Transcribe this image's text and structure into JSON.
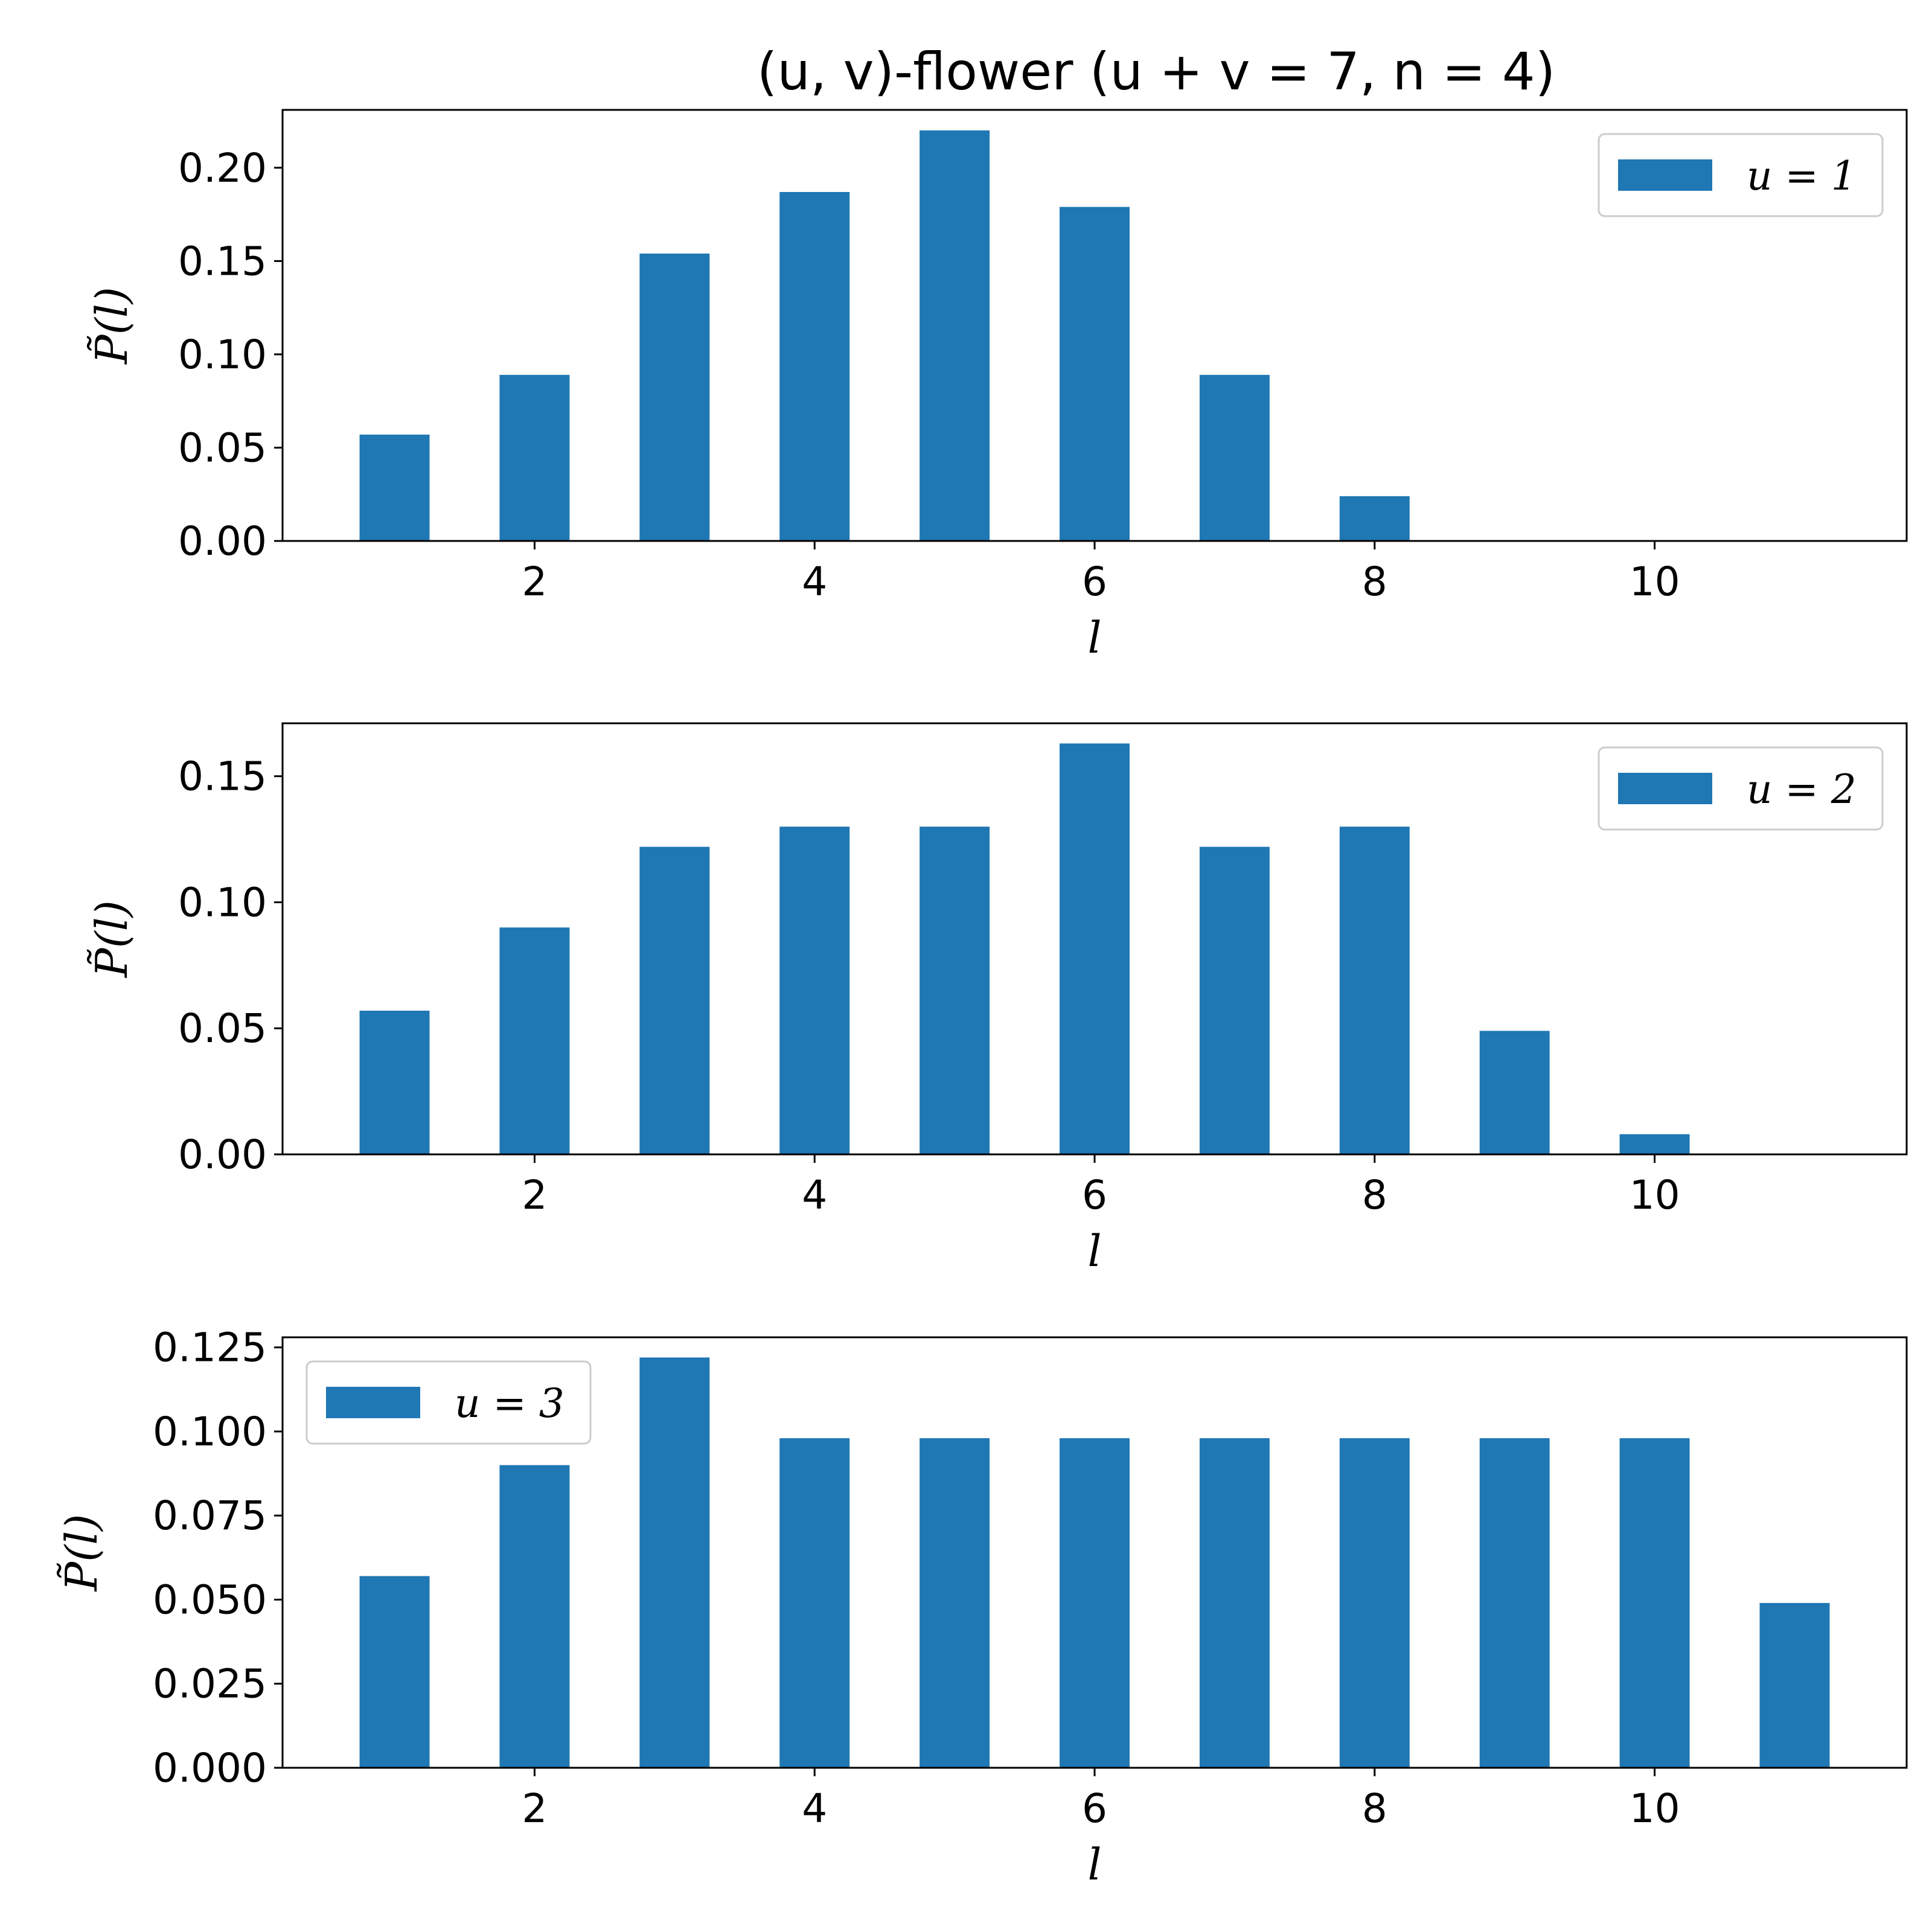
{
  "figure_title": "(u, v)-flower (u + v = 7, n = 4)",
  "colors": {
    "bar": "#1f77b4"
  },
  "chart_data": [
    {
      "type": "bar",
      "xlabel": "l",
      "ylabel": "P̃(l)",
      "xlim": [
        0.2,
        11.8
      ],
      "ylim": [
        0,
        0.231
      ],
      "xticks": [
        2,
        4,
        6,
        8,
        10
      ],
      "xtick_labels": [
        "2",
        "4",
        "6",
        "8",
        "10"
      ],
      "yticks": [
        0,
        0.05,
        0.1,
        0.15,
        0.2
      ],
      "ytick_labels": [
        "0.00",
        "0.05",
        "0.10",
        "0.15",
        "0.20"
      ],
      "bar_width": 0.5,
      "legend": {
        "position": "top-right"
      },
      "series": [
        {
          "name": "u = 1",
          "x": [
            1,
            2,
            3,
            4,
            5,
            6,
            7,
            8
          ],
          "values": [
            0.057,
            0.089,
            0.154,
            0.187,
            0.22,
            0.179,
            0.089,
            0.024
          ]
        }
      ]
    },
    {
      "type": "bar",
      "xlabel": "l",
      "ylabel": "P̃(l)",
      "xlim": [
        0.2,
        11.8
      ],
      "ylim": [
        0,
        0.171
      ],
      "xticks": [
        2,
        4,
        6,
        8,
        10
      ],
      "xtick_labels": [
        "2",
        "4",
        "6",
        "8",
        "10"
      ],
      "yticks": [
        0,
        0.05,
        0.1,
        0.15
      ],
      "ytick_labels": [
        "0.00",
        "0.05",
        "0.10",
        "0.15"
      ],
      "bar_width": 0.5,
      "legend": {
        "position": "top-right"
      },
      "series": [
        {
          "name": "u = 2",
          "x": [
            1,
            2,
            3,
            4,
            5,
            6,
            7,
            8,
            9,
            10
          ],
          "values": [
            0.057,
            0.09,
            0.122,
            0.13,
            0.13,
            0.163,
            0.122,
            0.13,
            0.049,
            0.008
          ]
        }
      ]
    },
    {
      "type": "bar",
      "xlabel": "l",
      "ylabel": "P̃(l)",
      "xlim": [
        0.2,
        11.8
      ],
      "ylim": [
        0,
        0.128
      ],
      "xticks": [
        2,
        4,
        6,
        8,
        10
      ],
      "xtick_labels": [
        "2",
        "4",
        "6",
        "8",
        "10"
      ],
      "yticks": [
        0,
        0.025,
        0.05,
        0.075,
        0.1,
        0.125
      ],
      "ytick_labels": [
        "0.000",
        "0.025",
        "0.050",
        "0.075",
        "0.100",
        "0.125"
      ],
      "bar_width": 0.5,
      "legend": {
        "position": "top-left"
      },
      "series": [
        {
          "name": "u = 3",
          "x": [
            1,
            2,
            3,
            4,
            5,
            6,
            7,
            8,
            9,
            10,
            11
          ],
          "values": [
            0.057,
            0.09,
            0.122,
            0.098,
            0.098,
            0.098,
            0.098,
            0.098,
            0.098,
            0.098,
            0.049
          ]
        }
      ]
    }
  ]
}
